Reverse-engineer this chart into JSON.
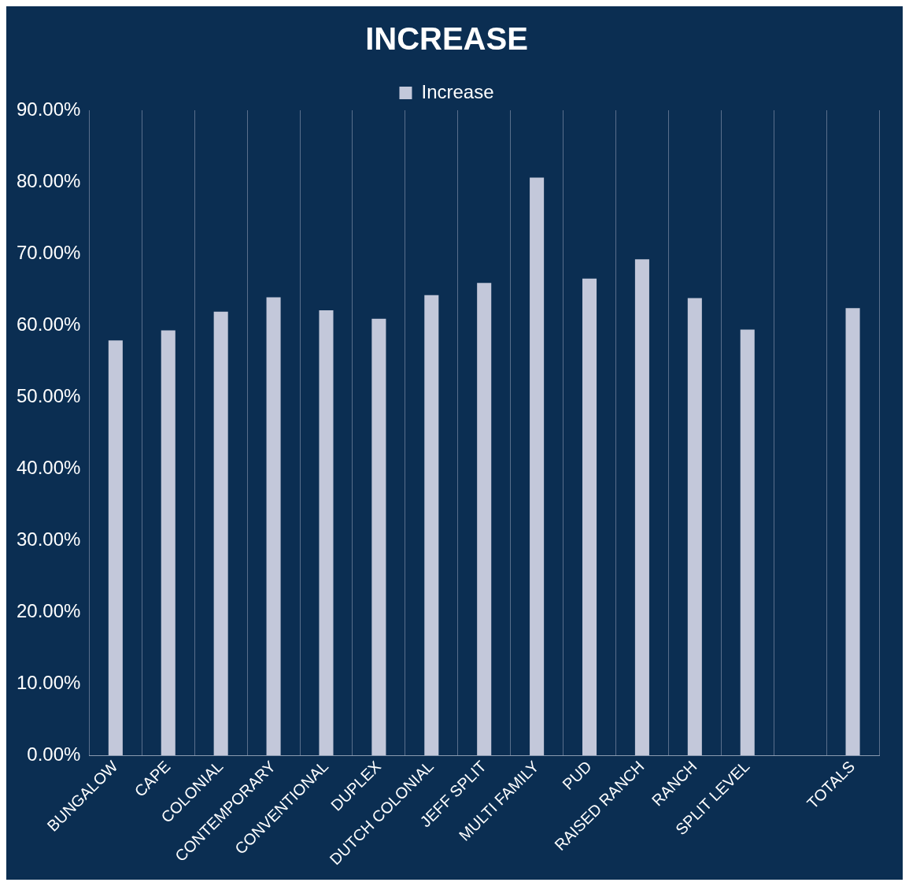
{
  "chart_data": {
    "type": "bar",
    "title": "INCREASE",
    "categories": [
      "BUNGALOW",
      "CAPE",
      "COLONIAL",
      "CONTEMPORARY",
      "CONVENTIONAL",
      "DUPLEX",
      "DUTCH COLONIAL",
      "JEFF SPLIT",
      "MULTI FAMILY",
      "PUD",
      "RAISED RANCH",
      "RANCH",
      "SPLIT LEVEL",
      null,
      "TOTALS"
    ],
    "series": [
      {
        "name": "Increase",
        "color": "#c3c8da",
        "values": [
          57.9,
          59.3,
          61.9,
          63.9,
          62.1,
          60.9,
          64.2,
          65.9,
          80.6,
          66.5,
          69.2,
          63.8,
          59.4,
          null,
          62.4
        ]
      }
    ],
    "ylim": [
      0,
      90
    ],
    "yticks": [
      {
        "value": 0,
        "label": "0.00%"
      },
      {
        "value": 10,
        "label": "10.00%"
      },
      {
        "value": 20,
        "label": "20.00%"
      },
      {
        "value": 30,
        "label": "30.00%"
      },
      {
        "value": 40,
        "label": "40.00%"
      },
      {
        "value": 50,
        "label": "50.00%"
      },
      {
        "value": 60,
        "label": "60.00%"
      },
      {
        "value": 70,
        "label": "70.00%"
      },
      {
        "value": 80,
        "label": "80.00%"
      },
      {
        "value": 90,
        "label": "90.00%"
      }
    ],
    "grid": "x",
    "legend": "top"
  }
}
